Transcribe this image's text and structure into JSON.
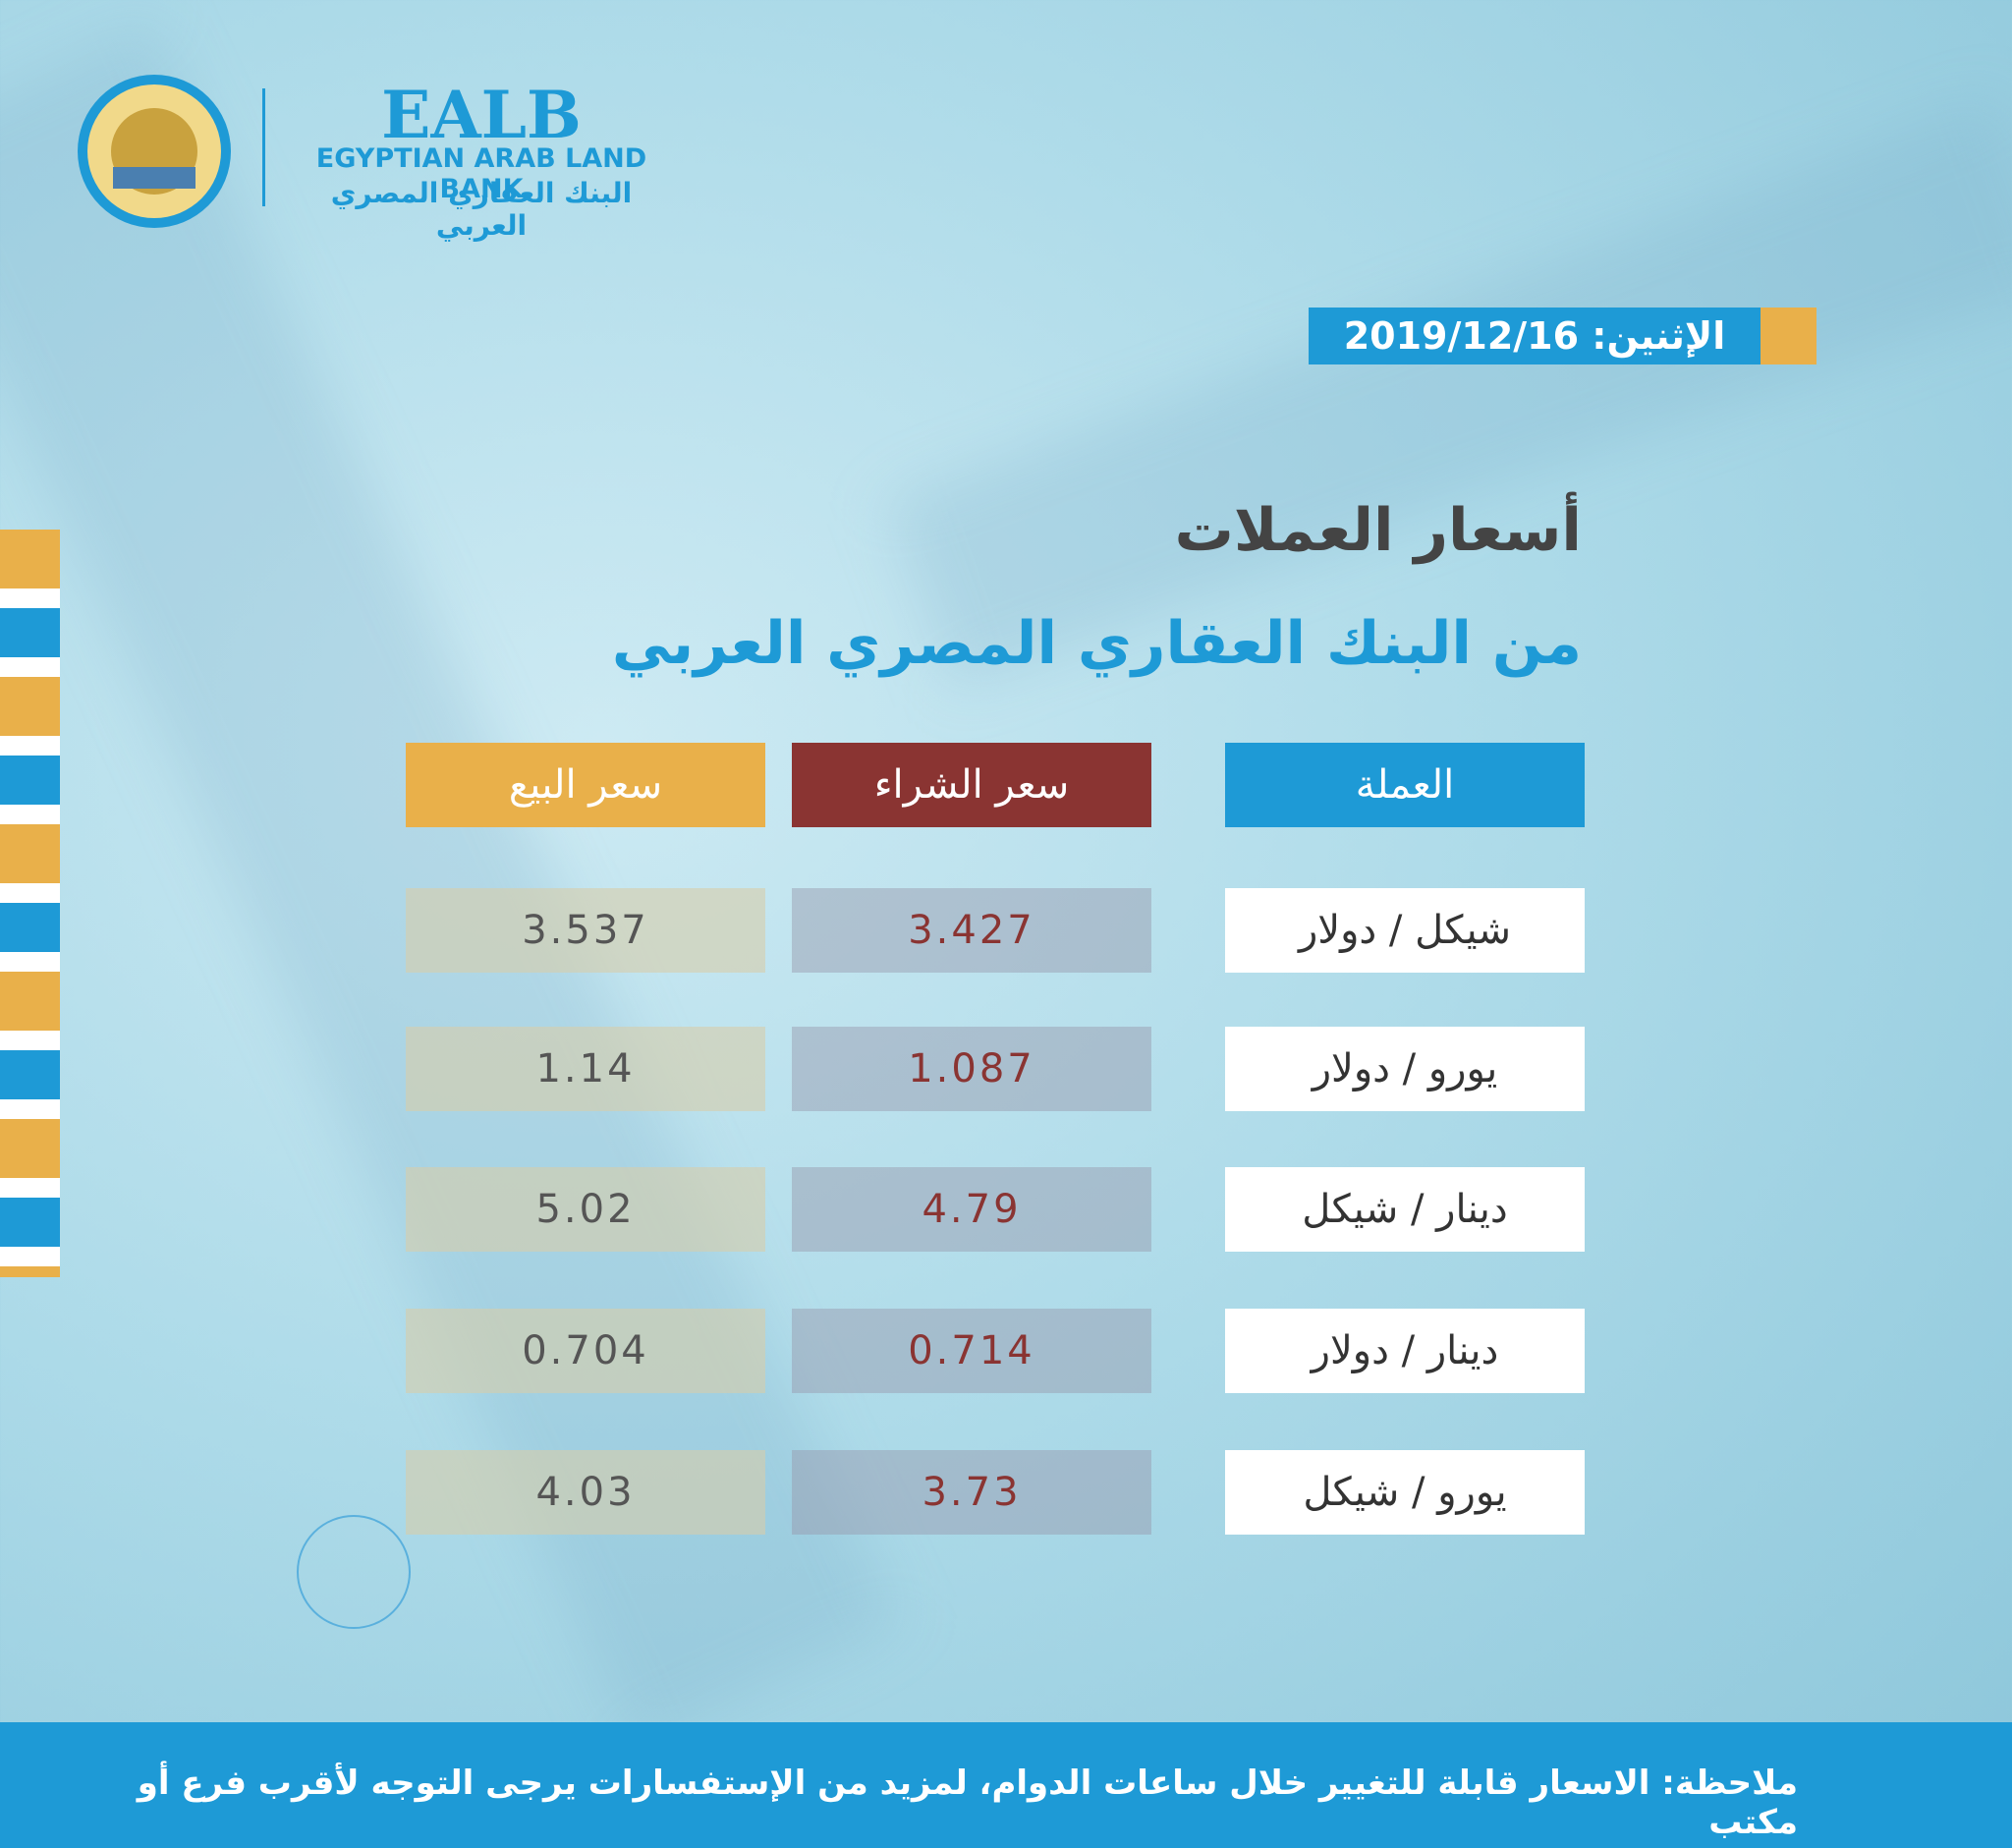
{
  "header": {
    "logo_abbr": "EALB",
    "bank_name_en": "EGYPTIAN ARAB LAND BANK",
    "bank_name_ar": "البنك العقاري المصري العربي",
    "date": "الإثنين: 2019/12/16"
  },
  "title": "أسعار العملات",
  "subtitle": "من البنك العقاري المصري العربي",
  "table": {
    "headers": [
      "العملة",
      "سعر الشراء",
      "سعر البيع"
    ],
    "rows": [
      [
        "شيكل / دولار",
        "3.427",
        "3.537"
      ],
      [
        "يورو / دولار",
        "1.087",
        "1.14"
      ],
      [
        "دينار / شيكل",
        "4.79",
        "5.02"
      ],
      [
        "دينار / دولار",
        "0.714",
        "0.704"
      ],
      [
        "يورو / شيكل",
        "3.73",
        "4.03"
      ]
    ]
  },
  "footer": {
    "note": "ملاحظة: الاسعار قابلة للتغيير خلال ساعات الدوام، لمزيد من الإستفسارات يرجى التوجه لأقرب فرع أو مكتب"
  }
}
